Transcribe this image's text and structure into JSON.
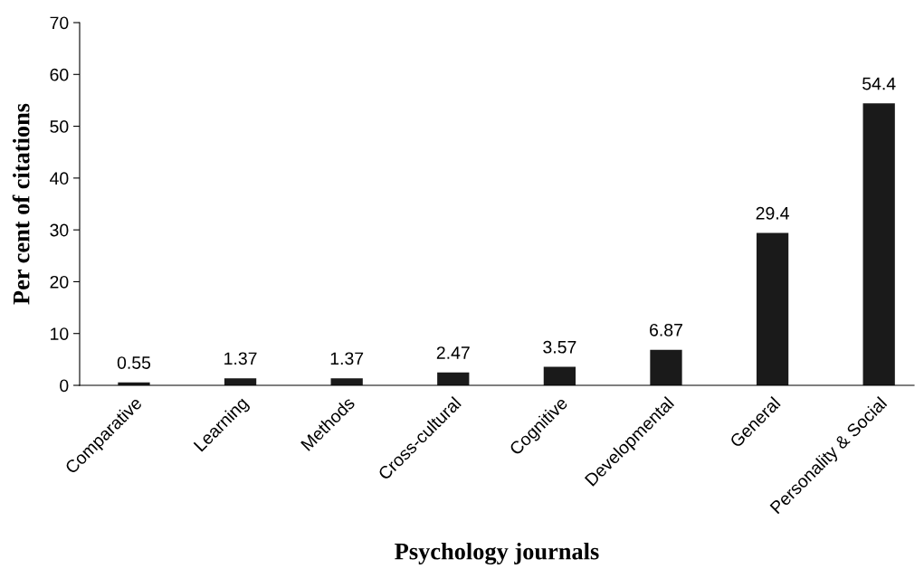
{
  "chart_data": {
    "type": "bar",
    "xlabel": "Psychology journals",
    "ylabel": "Per cent of citations",
    "categories": [
      "Comparative",
      "Learning",
      "Methods",
      "Cross-cultural",
      "Cognitive",
      "Developmental",
      "General",
      "Personality & Social"
    ],
    "values": [
      0.55,
      1.37,
      1.37,
      2.47,
      3.57,
      6.87,
      29.4,
      54.4
    ],
    "color": "#1a1a1a",
    "data_labels": true,
    "ylim": [
      0,
      70
    ],
    "yticks": [
      0,
      10,
      20,
      30,
      40,
      50,
      60,
      70
    ],
    "grid": false
  }
}
